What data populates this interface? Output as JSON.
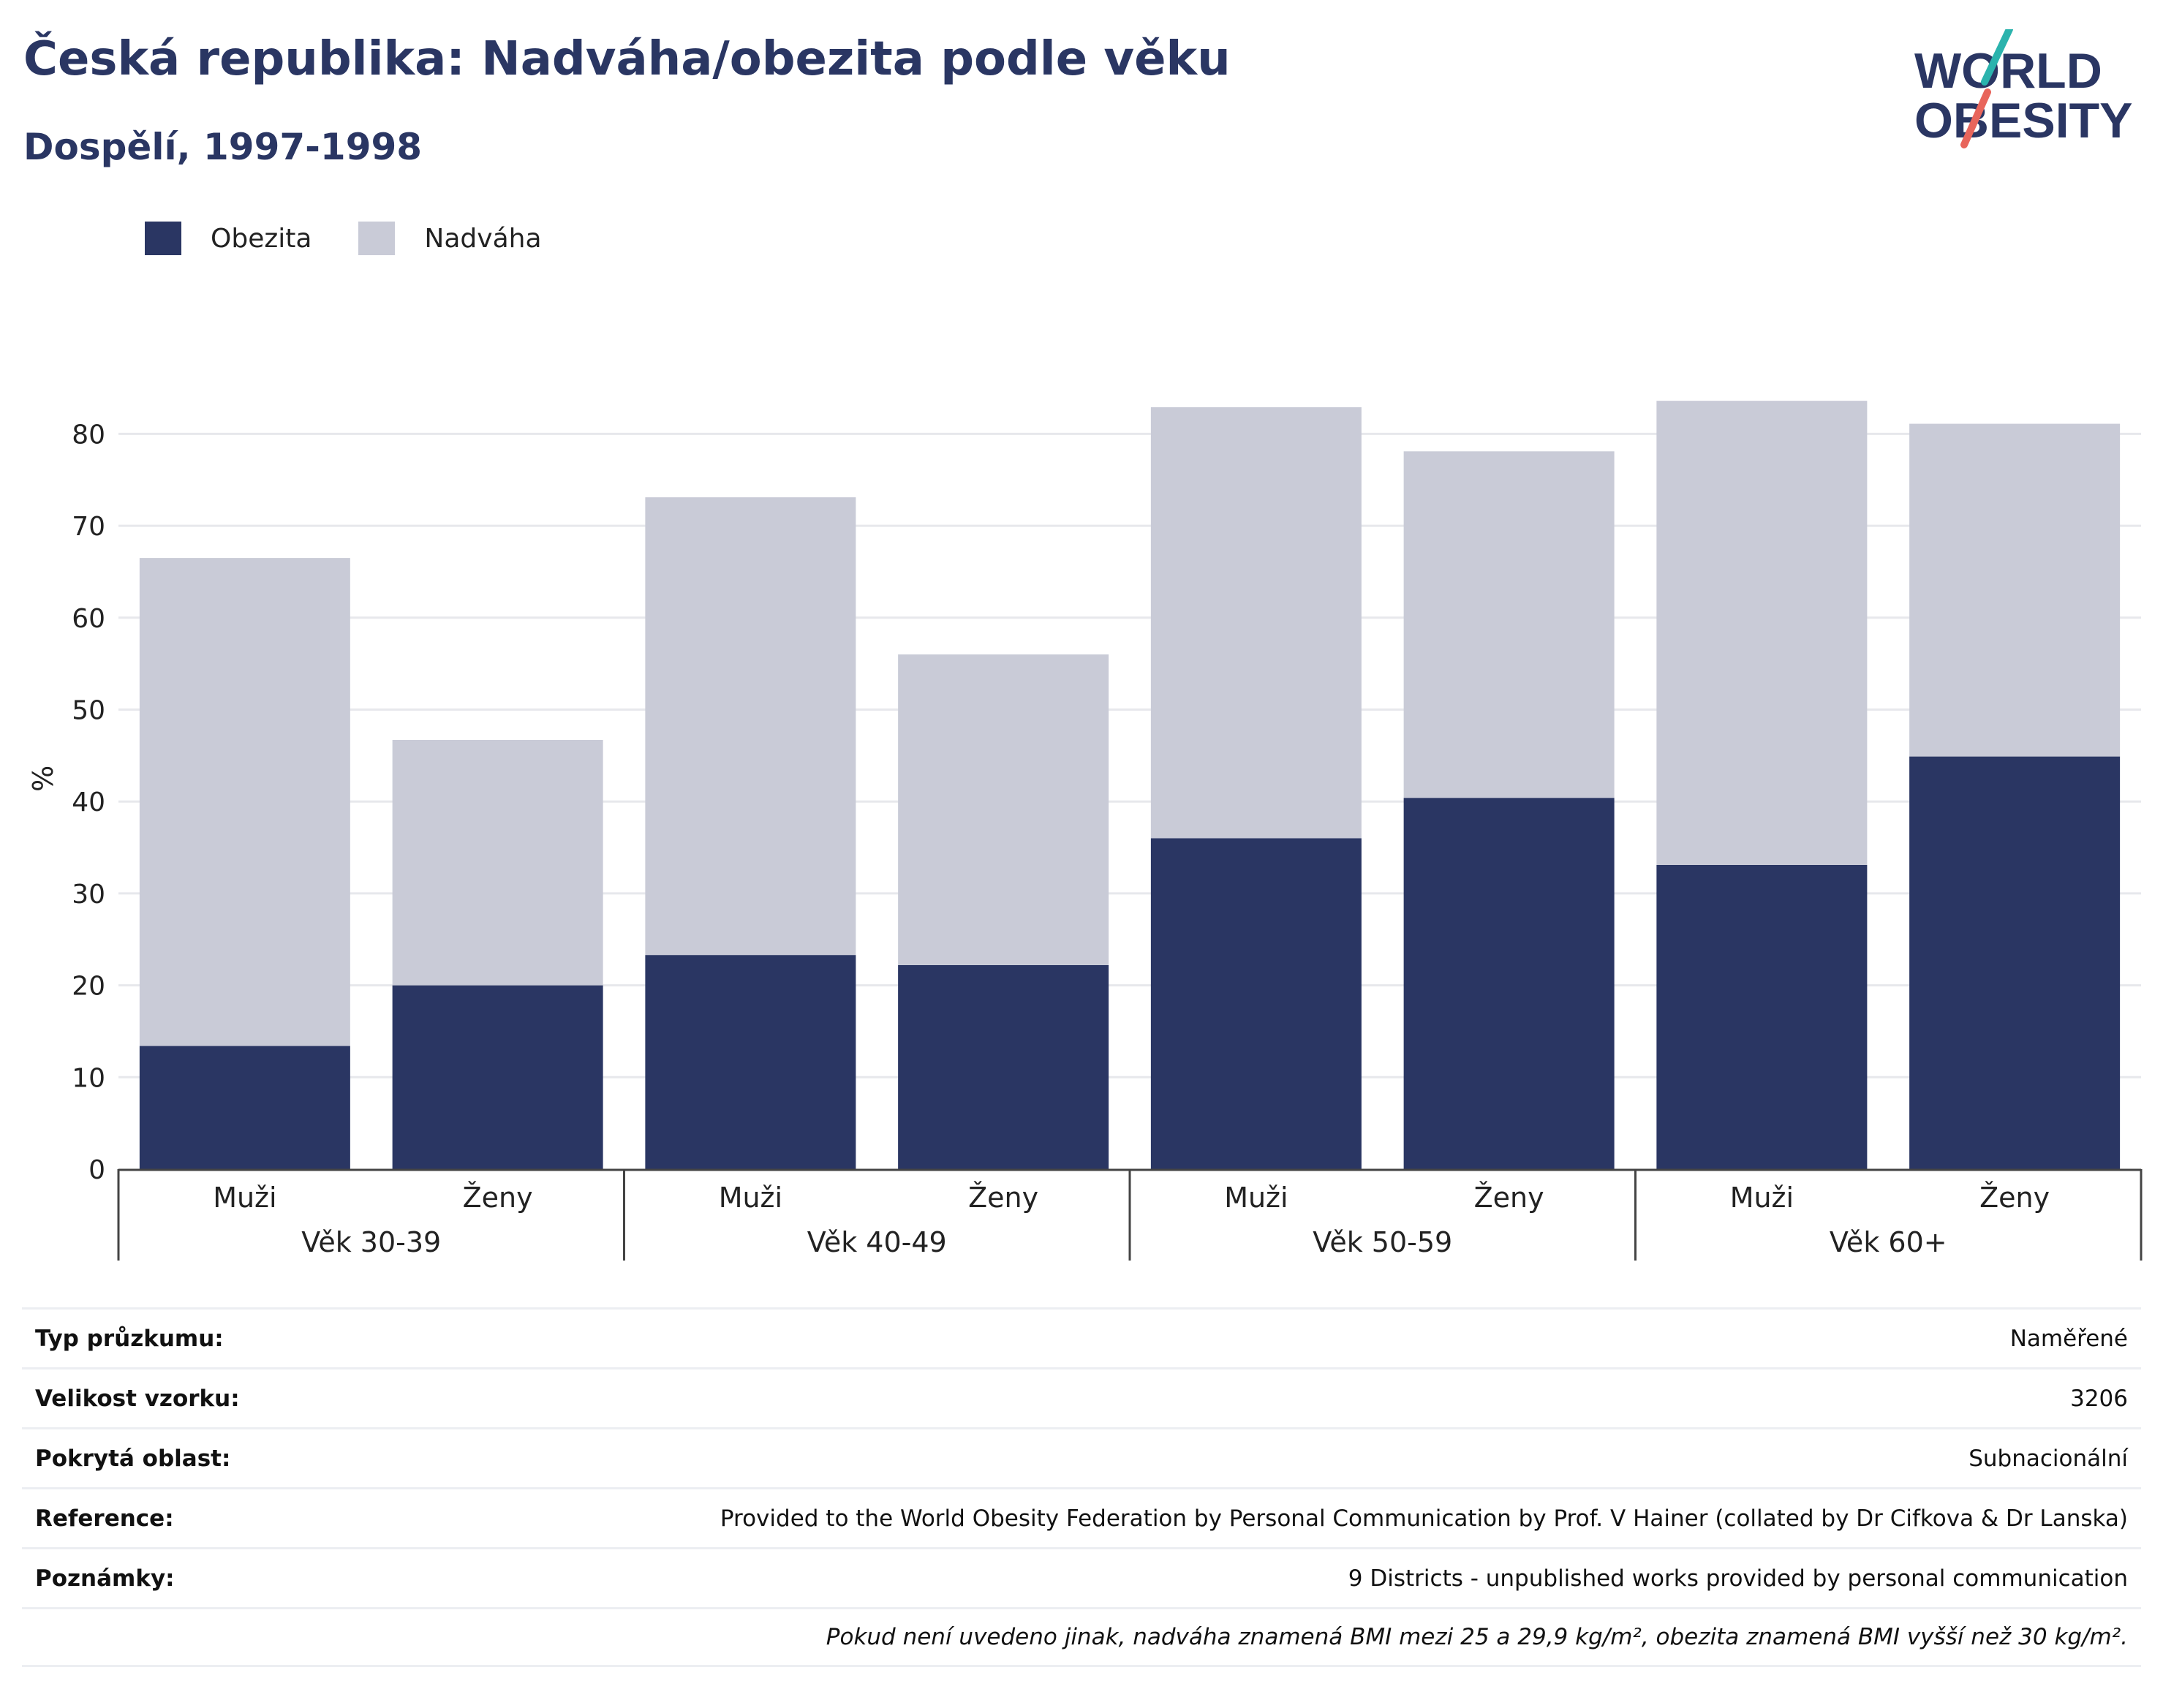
{
  "header": {
    "title": "Česká republika: Nadváha/obezita podle věku",
    "subtitle": "Dospělí, 1997-1998"
  },
  "logo": {
    "line1": "WORLD",
    "line2": "OBESITY",
    "accent_colors": [
      "#2bb3ad",
      "#e8655b"
    ]
  },
  "colors": {
    "obesity": "#2a3663",
    "overweight": "#c9cbd7",
    "grid": "#e7e8ec",
    "axis": "#444444"
  },
  "legend": [
    {
      "label": "Obezita",
      "color": "#2a3663"
    },
    {
      "label": "Nadváha",
      "color": "#c9cbd7"
    }
  ],
  "chart_data": {
    "type": "bar",
    "stacked": true,
    "ylabel": "%",
    "ylim": [
      0,
      85
    ],
    "yticks": [
      0,
      10,
      20,
      30,
      40,
      50,
      60,
      70,
      80
    ],
    "grid": true,
    "legend_position": "top-left",
    "groups": [
      "Věk 30-39",
      "Věk 40-49",
      "Věk 50-59",
      "Věk 60+"
    ],
    "categories": [
      "Muži",
      "Ženy",
      "Muži",
      "Ženy",
      "Muži",
      "Ženy",
      "Muži",
      "Ženy"
    ],
    "series": [
      {
        "name": "Obezita",
        "values": [
          13.4,
          20.0,
          23.3,
          22.2,
          36.0,
          40.4,
          33.1,
          44.9
        ]
      },
      {
        "name": "Nadváha",
        "values": [
          53.1,
          26.7,
          49.8,
          33.8,
          46.9,
          37.7,
          50.5,
          36.2
        ]
      }
    ]
  },
  "info": {
    "rows": [
      {
        "label": "Typ průzkumu:",
        "value": "Naměřené"
      },
      {
        "label": "Velikost vzorku:",
        "value": "3206"
      },
      {
        "label": "Pokrytá oblast:",
        "value": "Subnacionální"
      },
      {
        "label": "Reference:",
        "value": "Provided to the World Obesity Federation by Personal Communication by Prof. V Hainer (collated by Dr Cifkova & Dr Lanska)"
      },
      {
        "label": "Poznámky:",
        "value": "9 Districts - unpublished works provided by personal communication"
      }
    ],
    "footnote": "Pokud není uvedeno jinak, nadváha znamená BMI mezi 25 a 29,9 kg/m², obezita znamená BMI vyšší než 30 kg/m²."
  }
}
